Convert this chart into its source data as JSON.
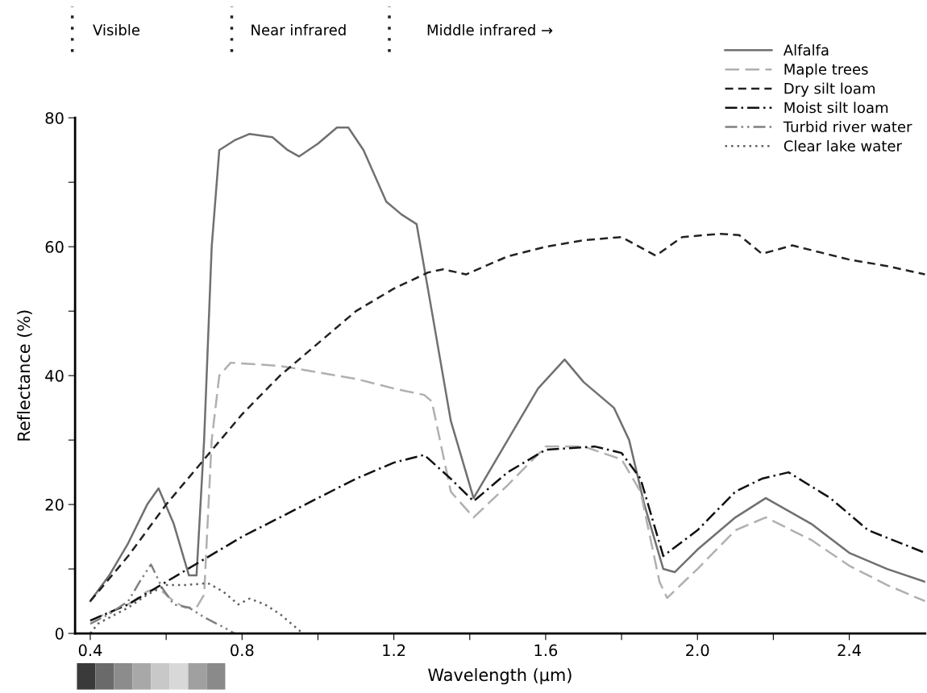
{
  "chart_data": {
    "type": "line",
    "xlabel": "Wavelength (µm)",
    "ylabel": "Reflectance (%)",
    "xlim": [
      0.36,
      2.6
    ],
    "ylim": [
      0,
      80
    ],
    "xticks": [
      0.4,
      {
        "value": 0.6,
        "label": null
      },
      0.8,
      {
        "value": 1.0,
        "label": null
      },
      1.2,
      {
        "value": 1.4,
        "label": null
      },
      1.6,
      {
        "value": 1.8,
        "label": null
      },
      {
        "value": 2.0,
        "label": "2.0"
      },
      {
        "value": 2.2,
        "label": null
      },
      2.4
    ],
    "yticks": [
      0,
      {
        "value": 10,
        "label": null
      },
      20,
      {
        "value": 30,
        "label": null
      },
      40,
      {
        "value": 50,
        "label": null
      },
      60,
      {
        "value": 70,
        "label": null
      },
      80
    ],
    "grid": false,
    "legend": "top right",
    "marker": "none",
    "annotations": [
      "Visible",
      "Near infrared",
      "Middle infrared →"
    ],
    "series": [
      {
        "name": "Alfalfa",
        "color": "#707070",
        "line_style": "solid",
        "x": [
          0.4,
          0.45,
          0.5,
          0.55,
          0.58,
          0.62,
          0.66,
          0.68,
          0.7,
          0.72,
          0.74,
          0.78,
          0.82,
          0.88,
          0.92,
          0.95,
          1.0,
          1.05,
          1.08,
          1.12,
          1.18,
          1.22,
          1.26,
          1.3,
          1.35,
          1.41,
          1.5,
          1.58,
          1.65,
          1.7,
          1.78,
          1.82,
          1.86,
          1.91,
          1.94,
          2.0,
          2.1,
          2.18,
          2.3,
          2.4,
          2.5,
          2.6
        ],
        "values": [
          5,
          9,
          14,
          20,
          22.5,
          17,
          9,
          9,
          30,
          60,
          75,
          76.5,
          77.5,
          77,
          75,
          74,
          76,
          78.5,
          78.5,
          75,
          67,
          65,
          63.5,
          50,
          33,
          21,
          30,
          38,
          42.5,
          39,
          35,
          30,
          20,
          10,
          9.5,
          13,
          18,
          21,
          17,
          12.5,
          10,
          8
        ]
      },
      {
        "name": "Maple trees",
        "color": "#b0b0b0",
        "line_style": "longdash",
        "x": [
          0.4,
          0.5,
          0.55,
          0.58,
          0.62,
          0.65,
          0.68,
          0.7,
          0.72,
          0.74,
          0.77,
          0.9,
          1.0,
          1.1,
          1.2,
          1.28,
          1.3,
          1.35,
          1.41,
          1.5,
          1.6,
          1.7,
          1.8,
          1.85,
          1.9,
          1.92,
          2.0,
          2.1,
          2.18,
          2.3,
          2.4,
          2.5,
          2.6
        ],
        "values": [
          2,
          4.5,
          6.5,
          7,
          5,
          4,
          4,
          6,
          30,
          40,
          42,
          41.5,
          40.5,
          39.5,
          38,
          37,
          36,
          22,
          18,
          23,
          29,
          29,
          27,
          22,
          8,
          5.5,
          10,
          16,
          18,
          14.5,
          10.5,
          7.5,
          5
        ]
      },
      {
        "name": "Dry silt loam",
        "color": "#222222",
        "line_style": "dashed",
        "x": [
          0.4,
          0.5,
          0.6,
          0.7,
          0.8,
          0.9,
          1.0,
          1.1,
          1.2,
          1.29,
          1.33,
          1.39,
          1.5,
          1.6,
          1.7,
          1.8,
          1.89,
          1.96,
          2.06,
          2.11,
          2.17,
          2.25,
          2.4,
          2.5,
          2.6
        ],
        "values": [
          5,
          12,
          20,
          27,
          34,
          40,
          45,
          50,
          53.5,
          56,
          56.5,
          55.7,
          58.5,
          60,
          61,
          61.5,
          58.6,
          61.5,
          62,
          61.8,
          58.9,
          60.2,
          58,
          57,
          55.7
        ]
      },
      {
        "name": "Moist silt loam",
        "color": "#111111",
        "line_style": "dashdot",
        "x": [
          0.4,
          0.5,
          0.6,
          0.7,
          0.8,
          0.9,
          1.0,
          1.1,
          1.2,
          1.28,
          1.35,
          1.41,
          1.5,
          1.6,
          1.73,
          1.8,
          1.85,
          1.91,
          2.0,
          2.1,
          2.17,
          2.24,
          2.35,
          2.45,
          2.6
        ],
        "values": [
          2,
          4.5,
          8,
          11.5,
          15,
          18,
          21,
          24,
          26.5,
          27.7,
          24,
          20.5,
          25,
          28.5,
          29,
          28,
          24,
          12,
          16,
          22,
          24,
          25,
          21,
          16,
          12.5
        ]
      },
      {
        "name": "Turbid river water",
        "color": "#808080",
        "line_style": "dashdotdot",
        "x": [
          0.4,
          0.45,
          0.5,
          0.53,
          0.56,
          0.59,
          0.62,
          0.66,
          0.7,
          0.75,
          0.78
        ],
        "values": [
          1.5,
          3,
          5,
          8,
          10.7,
          7,
          4.5,
          4,
          2.5,
          1,
          0
        ]
      },
      {
        "name": "Clear lake water",
        "color": "#606060",
        "line_style": "dotted",
        "x": [
          0.4,
          0.42,
          0.5,
          0.55,
          0.6,
          0.65,
          0.71,
          0.75,
          0.79,
          0.82,
          0.86,
          0.9,
          0.96
        ],
        "values": [
          0,
          1.5,
          4,
          6,
          7.5,
          7.5,
          7.8,
          6.5,
          4.5,
          5.4,
          4.5,
          3,
          0
        ]
      }
    ]
  }
}
